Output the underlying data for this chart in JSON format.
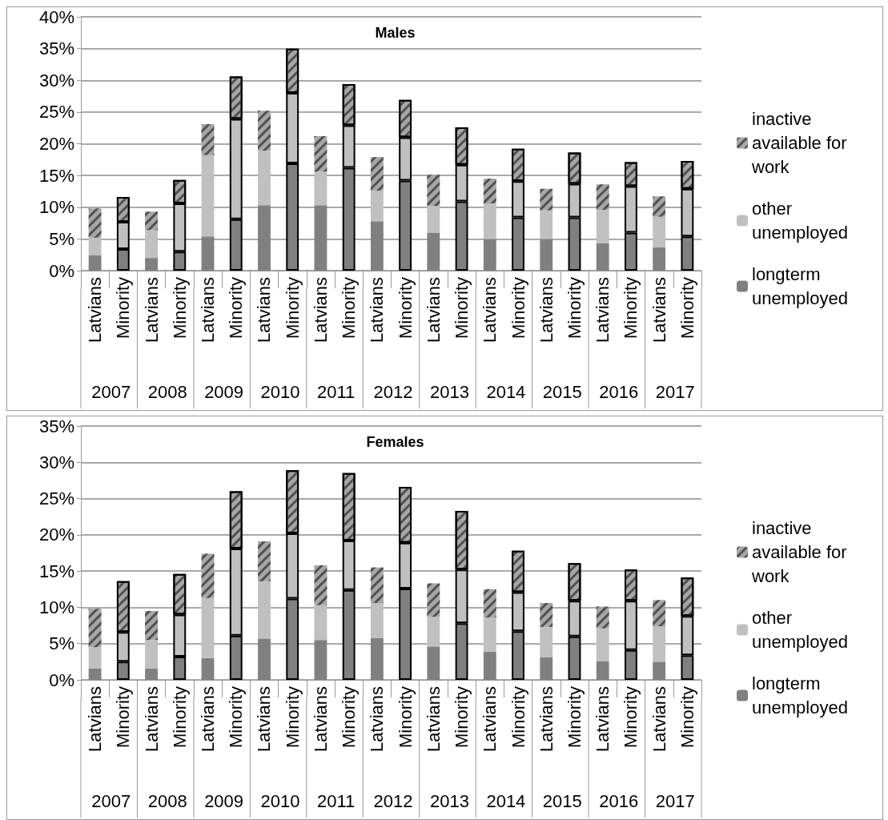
{
  "chart_data": [
    {
      "type": "bar",
      "title": "Males",
      "stacked": true,
      "grid": "y",
      "legend": "right",
      "categories": [
        "Latvians",
        "Minority",
        "Latvians",
        "Minority",
        "Latvians",
        "Minority",
        "Latvians",
        "Minority",
        "Latvians",
        "Minority",
        "Latvians",
        "Minority",
        "Latvians",
        "Minority",
        "Latvians",
        "Minority",
        "Latvians",
        "Minority",
        "Latvians",
        "Minority",
        "Latvians",
        "Minority"
      ],
      "annotations": [
        "2007",
        "2008",
        "2009",
        "2010",
        "2011",
        "2012",
        "2013",
        "2014",
        "2015",
        "2016",
        "2017"
      ],
      "ylim": [
        0,
        40
      ],
      "yticks": [
        {
          "value": 0,
          "label": "0%"
        },
        {
          "value": 5,
          "label": "5%"
        },
        {
          "value": 10,
          "label": "10%"
        },
        {
          "value": 15,
          "label": "15%"
        },
        {
          "value": 20,
          "label": "20%"
        },
        {
          "value": 25,
          "label": "25%"
        },
        {
          "value": 30,
          "label": "30%"
        },
        {
          "value": 35,
          "label": "35%"
        },
        {
          "value": 40,
          "label": "40%"
        }
      ],
      "series": [
        {
          "name": "longterm unemployed",
          "color": "#808080",
          "values": [
            2.4,
            3.4,
            2.0,
            3.0,
            5.4,
            8.1,
            10.3,
            16.9,
            10.3,
            16.2,
            7.8,
            14.2,
            6.0,
            10.9,
            5.0,
            8.4,
            5.0,
            8.4,
            4.3,
            6.0,
            3.7,
            5.4
          ]
        },
        {
          "name": "other unemployed",
          "color": "#c0c0c0",
          "values": [
            2.8,
            4.3,
            4.4,
            7.6,
            12.8,
            15.8,
            8.6,
            11.1,
            5.3,
            6.7,
            4.8,
            6.8,
            4.2,
            5.8,
            5.6,
            5.7,
            4.5,
            5.3,
            5.3,
            7.3,
            4.8,
            7.5
          ]
        },
        {
          "name": "inactive available for work",
          "color": "#a6a6a6",
          "values": [
            4.6,
            3.9,
            2.9,
            3.7,
            4.9,
            6.7,
            6.3,
            7.0,
            5.6,
            6.5,
            5.3,
            5.9,
            4.9,
            5.9,
            3.9,
            5.1,
            3.4,
            4.9,
            4.0,
            3.8,
            3.2,
            4.4
          ]
        }
      ]
    },
    {
      "type": "bar",
      "title": "Females",
      "stacked": true,
      "grid": "y",
      "legend": "right",
      "categories": [
        "Latvians",
        "Minority",
        "Latvians",
        "Minority",
        "Latvians",
        "Minority",
        "Latvians",
        "Minority",
        "Latvians",
        "Minority",
        "Latvians",
        "Minority",
        "Latvians",
        "Minority",
        "Latvians",
        "Minority",
        "Latvians",
        "Minority",
        "Latvians",
        "Minority",
        "Latvians",
        "Minority"
      ],
      "annotations": [
        "2007",
        "2008",
        "2009",
        "2010",
        "2011",
        "2012",
        "2013",
        "2014",
        "2015",
        "2016",
        "2017"
      ],
      "ylim": [
        0,
        35
      ],
      "yticks": [
        {
          "value": 0,
          "label": "0%"
        },
        {
          "value": 5,
          "label": "5%"
        },
        {
          "value": 10,
          "label": "10%"
        },
        {
          "value": 15,
          "label": "15%"
        },
        {
          "value": 20,
          "label": "20%"
        },
        {
          "value": 25,
          "label": "25%"
        },
        {
          "value": 30,
          "label": "30%"
        },
        {
          "value": 35,
          "label": "35%"
        }
      ],
      "series": [
        {
          "name": "longterm unemployed",
          "color": "#808080",
          "values": [
            1.6,
            2.5,
            1.6,
            3.2,
            3.0,
            6.1,
            5.7,
            11.2,
            5.5,
            12.4,
            5.8,
            12.6,
            4.6,
            7.8,
            3.9,
            6.7,
            3.1,
            6.0,
            2.6,
            4.1,
            2.5,
            3.4
          ]
        },
        {
          "name": "other unemployed",
          "color": "#c0c0c0",
          "values": [
            2.9,
            4.1,
            3.9,
            5.8,
            8.3,
            12.0,
            7.9,
            9.0,
            4.8,
            6.8,
            4.8,
            6.3,
            4.1,
            7.4,
            4.7,
            5.4,
            4.2,
            4.9,
            4.5,
            6.8,
            4.9,
            5.4
          ]
        },
        {
          "name": "inactive available for work",
          "color": "#a6a6a6",
          "values": [
            5.3,
            7.0,
            4.0,
            5.6,
            6.1,
            7.9,
            5.5,
            8.7,
            5.5,
            9.3,
            4.9,
            7.7,
            4.6,
            8.1,
            3.9,
            5.7,
            3.3,
            5.2,
            3.0,
            4.3,
            3.6,
            5.3
          ]
        }
      ]
    }
  ]
}
